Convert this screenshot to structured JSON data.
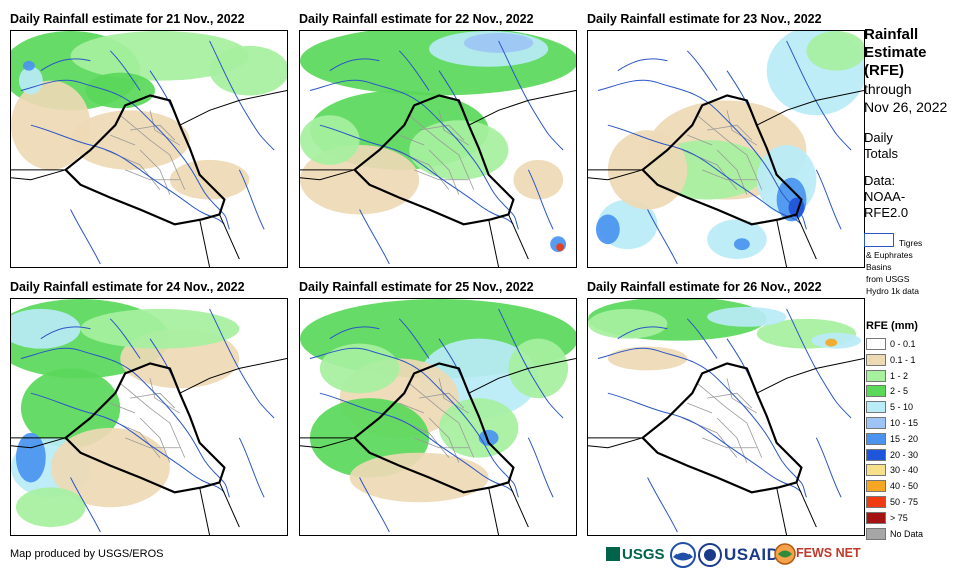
{
  "panels": [
    {
      "title": "Daily Rainfall estimate for 21 Nov., 2022",
      "date": "2022-11-21"
    },
    {
      "title": "Daily Rainfall estimate for 22 Nov., 2022",
      "date": "2022-11-22"
    },
    {
      "title": "Daily Rainfall estimate for 23 Nov., 2022",
      "date": "2022-11-23"
    },
    {
      "title": "Daily Rainfall estimate for 24 Nov., 2022",
      "date": "2022-11-24"
    },
    {
      "title": "Daily Rainfall estimate for 25 Nov., 2022",
      "date": "2022-11-25"
    },
    {
      "title": "Daily Rainfall estimate for 26 Nov., 2022",
      "date": "2022-11-26"
    }
  ],
  "sidebar": {
    "title_line1": "Rainfall",
    "title_line2": "Estimate",
    "title_line3": "(RFE)",
    "through_label": "through",
    "through_date": "Nov 26, 2022",
    "daily_line1": "Daily",
    "daily_line2": "Totals",
    "data_line1": "Data:",
    "data_line2": "NOAA-",
    "data_line3": "RFE2.0",
    "basins_line1": "Tigres",
    "basins_line2": "& Euphrates",
    "basins_line3": "Basins",
    "basins_line4": "from USGS",
    "basins_line5": "Hydro 1k data"
  },
  "legend": {
    "title": "RFE (mm)",
    "items": [
      {
        "label": "0 - 0.1",
        "color": "#ffffff"
      },
      {
        "label": "0.1 - 1",
        "color": "#eed9b5"
      },
      {
        "label": "1 - 2",
        "color": "#a6f0a0"
      },
      {
        "label": "2 - 5",
        "color": "#5ad85a"
      },
      {
        "label": "5 - 10",
        "color": "#b9ecf7"
      },
      {
        "label": "10 - 15",
        "color": "#9dc4f5"
      },
      {
        "label": "15 - 20",
        "color": "#4a94f0"
      },
      {
        "label": "20 - 30",
        "color": "#1f55db"
      },
      {
        "label": "30 - 40",
        "color": "#f7e08a"
      },
      {
        "label": "40 - 50",
        "color": "#f5a623"
      },
      {
        "label": "50 - 75",
        "color": "#f03a12"
      },
      {
        "label": "> 75",
        "color": "#a41212"
      },
      {
        "label": "No Data",
        "color": "#a6a6a6"
      }
    ]
  },
  "footer": {
    "credit": "Map produced by USGS/EROS",
    "logos": [
      "USGS",
      "NOAA",
      "USAID",
      "FEWS NET"
    ]
  }
}
